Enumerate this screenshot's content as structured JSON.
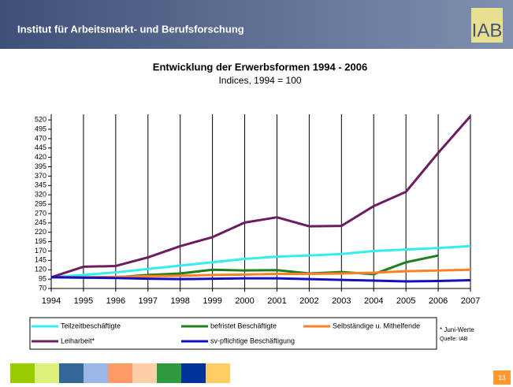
{
  "header": {
    "title": "Institut für Arbeitsmarkt- und Berufsforschung",
    "logo": "IAB"
  },
  "chart_data": {
    "type": "line",
    "title": "Entwicklung der Erwerbsformen 1994 - 2006",
    "subtitle": "Indices, 1994 = 100",
    "x": [
      1994,
      1995,
      1996,
      1997,
      1998,
      1999,
      2000,
      2001,
      2002,
      2003,
      2004,
      2005,
      2006,
      2007
    ],
    "xlim": [
      1994,
      2007
    ],
    "xticks": [
      1994,
      1995,
      1996,
      1997,
      1998,
      1999,
      2000,
      2001,
      2002,
      2003,
      2004,
      2005,
      2006,
      2007
    ],
    "ylim": [
      70,
      535
    ],
    "yticks": [
      70,
      95,
      120,
      145,
      170,
      195,
      220,
      245,
      270,
      295,
      320,
      345,
      370,
      395,
      420,
      445,
      470,
      495,
      520
    ],
    "grid": "x",
    "series": [
      {
        "name": "Teilzeitbeschäftigte",
        "color": "#33eeee",
        "values": [
          100,
          106,
          113,
          122,
          131,
          140,
          149,
          155,
          158,
          162,
          170,
          174,
          178,
          183
        ]
      },
      {
        "name": "befristet Beschäftigte",
        "color": "#1f7f1f",
        "values": [
          100,
          99,
          100,
          106,
          110,
          120,
          118,
          119,
          110,
          114,
          108,
          140,
          158,
          null
        ]
      },
      {
        "name": "Selbständige u. Mithelfende",
        "color": "#ff7f27",
        "values": [
          100,
          100,
          101,
          103,
          104,
          106,
          107,
          109,
          109,
          110,
          112,
          116,
          118,
          120
        ]
      },
      {
        "name": "Leiharbeit*",
        "color": "#6b1d5e",
        "values": [
          100,
          128,
          130,
          153,
          183,
          207,
          246,
          260,
          236,
          237,
          290,
          328,
          432,
          530
        ]
      },
      {
        "name": "sv-pflichtige Beschäftigung",
        "color": "#1010c0",
        "values": [
          100,
          99,
          98,
          96,
          95,
          96,
          97,
          97,
          95,
          93,
          91,
          89,
          90,
          92
        ]
      }
    ],
    "notes": [
      "* Juni-Werte",
      "Quelle: IAB"
    ]
  },
  "footer": {
    "page": "13"
  }
}
